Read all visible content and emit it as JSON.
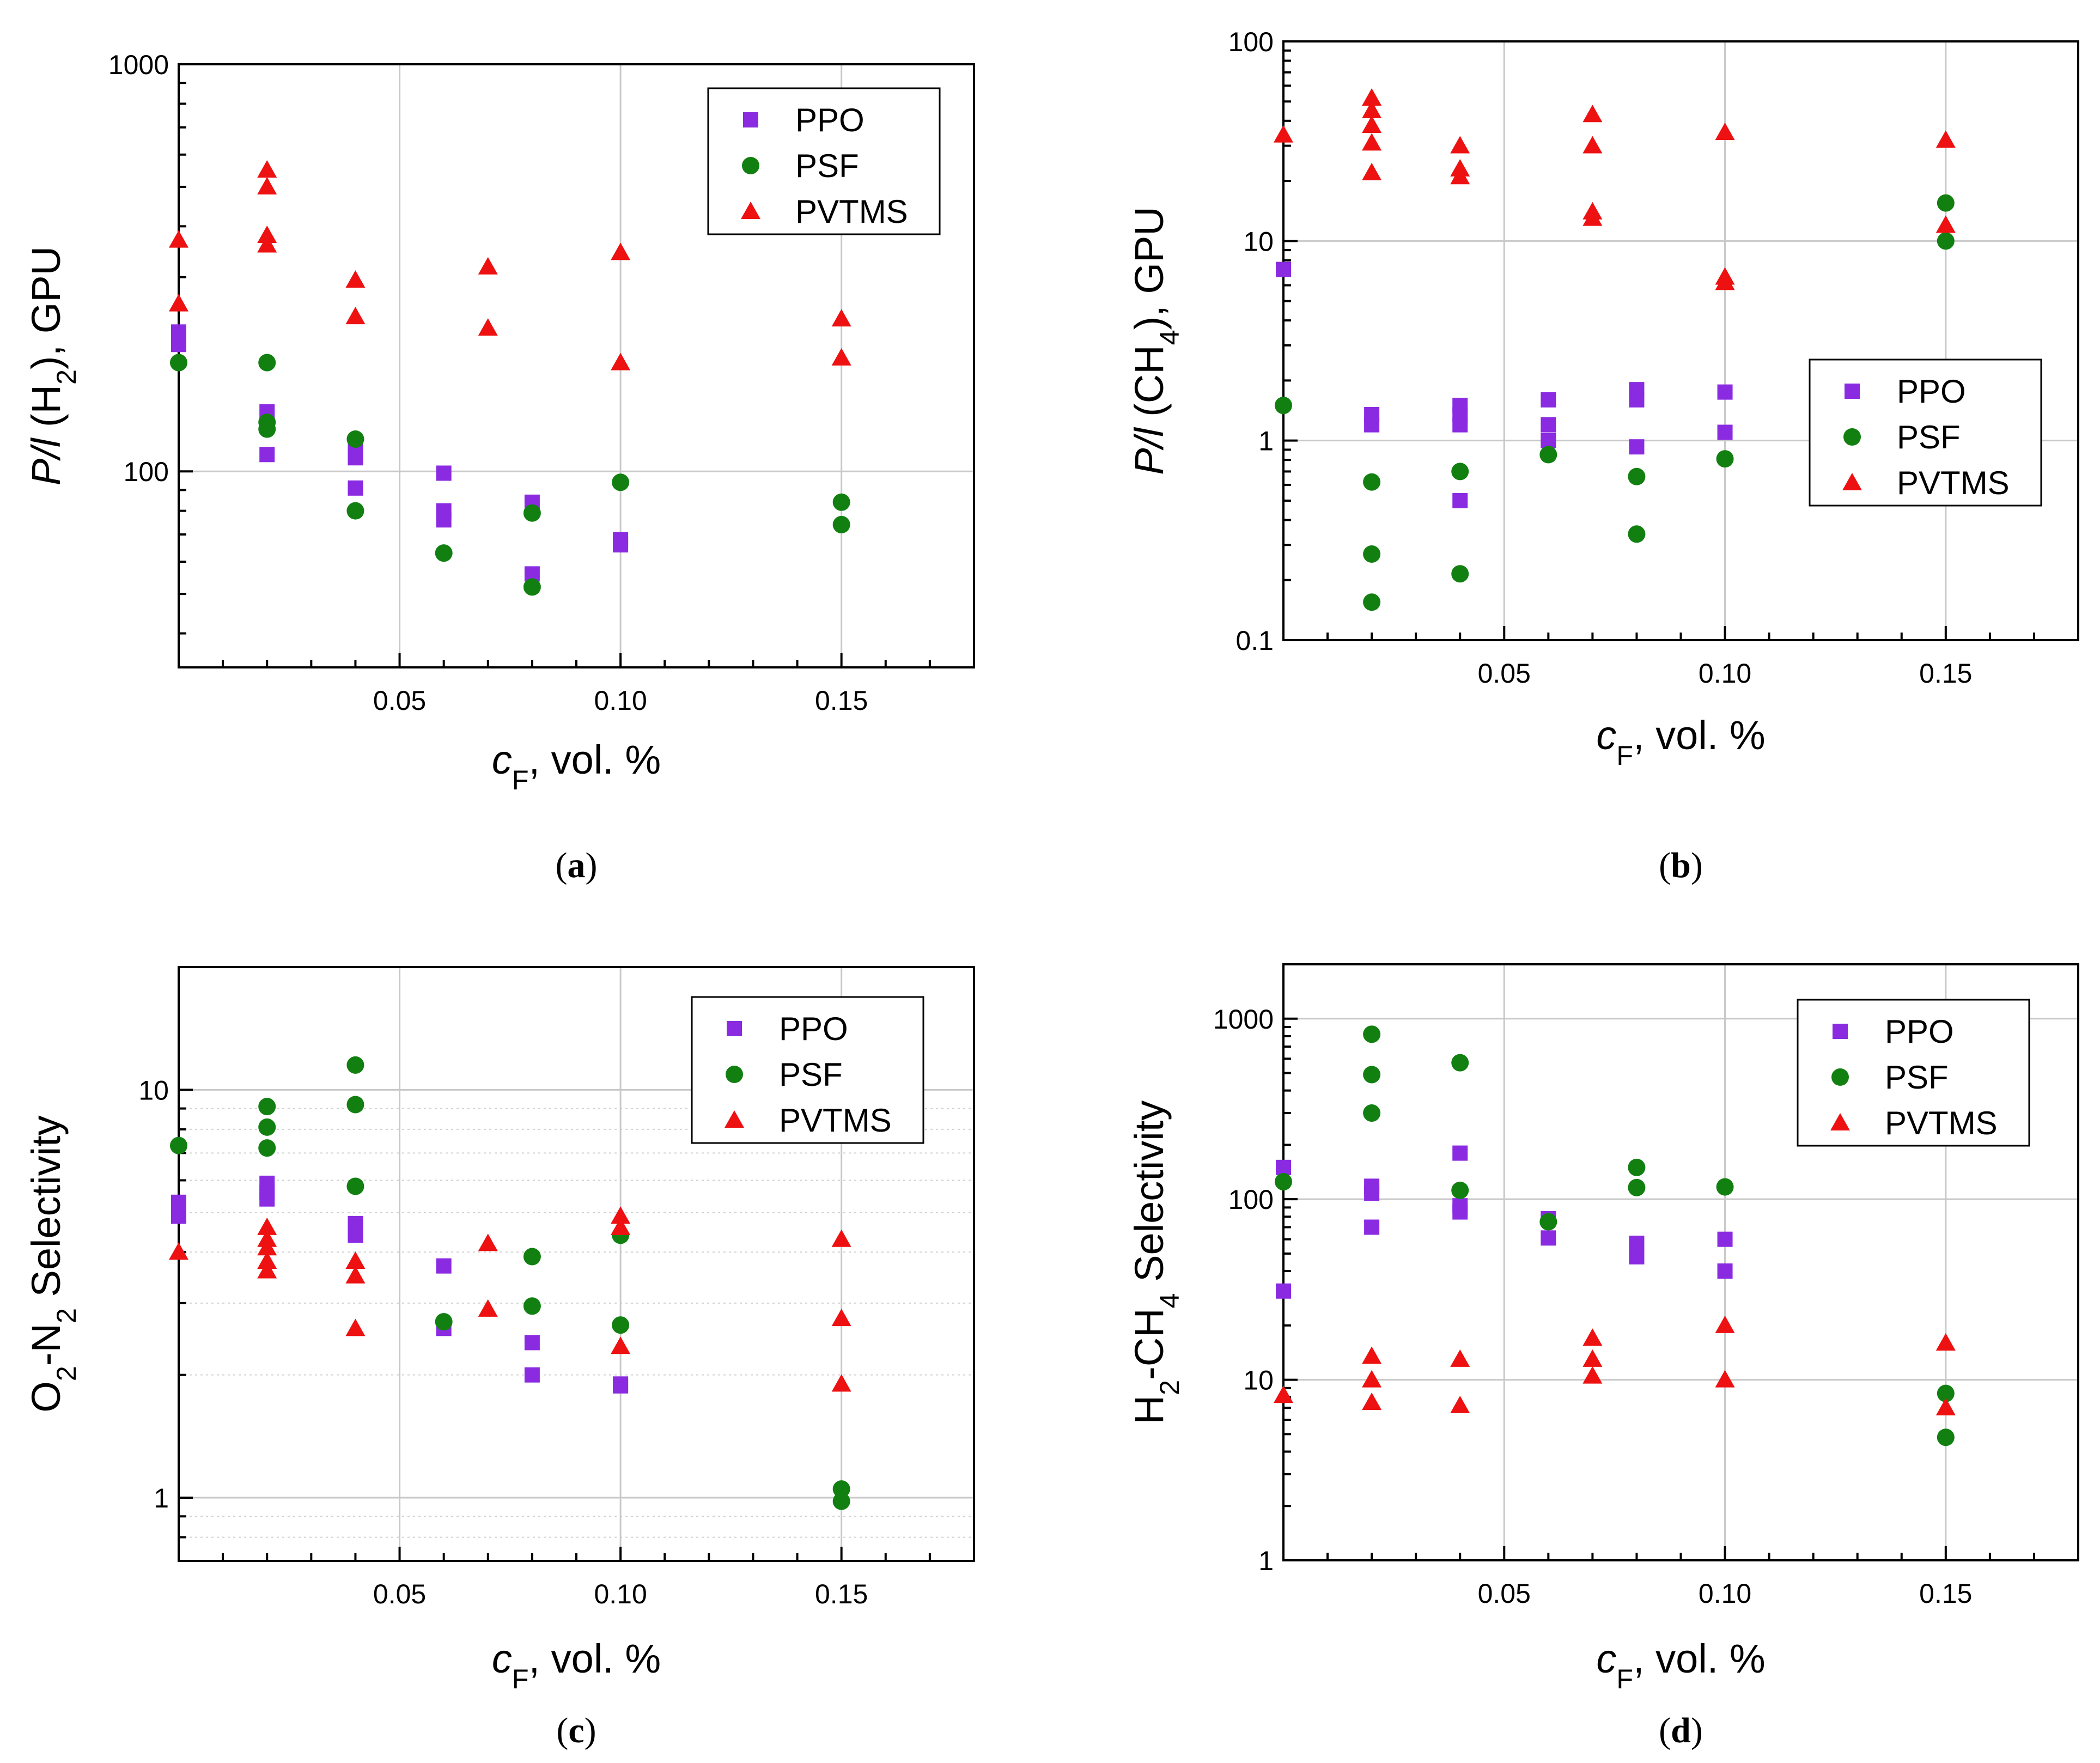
{
  "colors": {
    "PPO": "#8a2be2",
    "PSF": "#118011",
    "PVTMS": "#ee1111"
  },
  "icons": {
    "PPO": "square-marker",
    "PSF": "circle-marker",
    "PVTMS": "triangle-marker"
  },
  "chart_data": [
    {
      "type": "scatter",
      "panel": "a",
      "caption": "a",
      "xlabel": {
        "italic": "c",
        "sub": "F",
        "rest": ", vol. %"
      },
      "ylabel": [
        {
          "t": "P/l",
          "style": "italic"
        },
        {
          "t": " (H"
        },
        {
          "t": "2",
          "style": "sub"
        },
        {
          "t": "), GPU"
        }
      ],
      "xlim": [
        0,
        0.18
      ],
      "xticks": [
        0.05,
        0.1,
        0.15
      ],
      "xticklabels": [
        "0.05",
        "0.10",
        "0.15"
      ],
      "yscale": "log",
      "ylim": [
        33,
        1000
      ],
      "yticks": [
        100,
        1000
      ],
      "yticklabels": [
        "100",
        "1000"
      ],
      "minor_grid": false,
      "legend": "top-right",
      "series": [
        {
          "name": "PPO",
          "marker": "square",
          "x": [
            0,
            0,
            0.02,
            0.02,
            0.04,
            0.04,
            0.04,
            0.06,
            0.06,
            0.06,
            0.08,
            0.08,
            0.1,
            0.1
          ],
          "y": [
            220,
            205,
            140,
            110,
            112,
            108,
            91,
            99,
            80,
            76,
            84,
            56,
            68,
            66
          ]
        },
        {
          "name": "PSF",
          "marker": "circle",
          "x": [
            0,
            0.02,
            0.02,
            0.02,
            0.04,
            0.04,
            0.06,
            0.08,
            0.08,
            0.1,
            0.15,
            0.15
          ],
          "y": [
            185,
            185,
            132,
            127,
            120,
            80,
            63,
            79,
            52,
            94,
            84,
            74
          ]
        },
        {
          "name": "PVTMS",
          "marker": "triangle",
          "x": [
            0,
            0,
            0.02,
            0.02,
            0.02,
            0.02,
            0.04,
            0.04,
            0.07,
            0.07,
            0.1,
            0.1,
            0.15,
            0.15
          ],
          "y": [
            370,
            258,
            550,
            500,
            380,
            360,
            295,
            240,
            318,
            225,
            345,
            185,
            237,
            190
          ]
        }
      ]
    },
    {
      "type": "scatter",
      "panel": "b",
      "caption": "b",
      "xlabel": {
        "italic": "c",
        "sub": "F",
        "rest": ", vol. %"
      },
      "ylabel": [
        {
          "t": "P/l",
          "style": "italic"
        },
        {
          "t": " (CH"
        },
        {
          "t": "4",
          "style": "sub"
        },
        {
          "t": "), GPU"
        }
      ],
      "xlim": [
        0,
        0.18
      ],
      "xticks": [
        0.05,
        0.1,
        0.15
      ],
      "xticklabels": [
        "0.05",
        "0.10",
        "0.15"
      ],
      "yscale": "log",
      "ylim": [
        0.1,
        100
      ],
      "yticks": [
        0.1,
        1,
        10,
        100
      ],
      "yticklabels": [
        "0.1",
        "1",
        "10",
        "100"
      ],
      "minor_grid": false,
      "legend": "center-right",
      "series": [
        {
          "name": "PPO",
          "marker": "square",
          "x": [
            0,
            0.02,
            0.02,
            0.04,
            0.04,
            0.04,
            0.04,
            0.06,
            0.06,
            0.06,
            0.08,
            0.08,
            0.08,
            0.1,
            0.1
          ],
          "y": [
            7.2,
            1.35,
            1.2,
            1.5,
            1.35,
            1.2,
            0.5,
            1.6,
            1.2,
            1.0,
            1.8,
            1.6,
            0.93,
            1.75,
            1.1
          ]
        },
        {
          "name": "PSF",
          "marker": "circle",
          "x": [
            0,
            0.02,
            0.02,
            0.02,
            0.04,
            0.04,
            0.06,
            0.08,
            0.08,
            0.1,
            0.15,
            0.15
          ],
          "y": [
            1.5,
            0.62,
            0.27,
            0.155,
            0.7,
            0.215,
            0.85,
            0.66,
            0.34,
            0.81,
            15.5,
            10
          ]
        },
        {
          "name": "PVTMS",
          "marker": "triangle",
          "x": [
            0,
            0.02,
            0.02,
            0.02,
            0.02,
            0.02,
            0.04,
            0.04,
            0.04,
            0.07,
            0.07,
            0.07,
            0.07,
            0.1,
            0.1,
            0.1,
            0.15,
            0.15
          ],
          "y": [
            34,
            52,
            45,
            38,
            31,
            22,
            30,
            23,
            21,
            43,
            30,
            14,
            13,
            35,
            6.6,
            6.2,
            32,
            12
          ]
        }
      ]
    },
    {
      "type": "scatter",
      "panel": "c",
      "caption": "c",
      "xlabel": {
        "italic": "c",
        "sub": "F",
        "rest": ", vol. %"
      },
      "ylabel": [
        {
          "t": "O"
        },
        {
          "t": "2",
          "style": "sub"
        },
        {
          "t": "-N"
        },
        {
          "t": "2",
          "style": "sub"
        },
        {
          "t": " Selectivity"
        }
      ],
      "xlim": [
        0,
        0.18
      ],
      "xticks": [
        0.05,
        0.1,
        0.15
      ],
      "xticklabels": [
        "0.05",
        "0.10",
        "0.15"
      ],
      "yscale": "log",
      "ylim": [
        0.7,
        20
      ],
      "yticks": [
        1,
        10
      ],
      "yticklabels": [
        "1",
        "10"
      ],
      "minor_grid": true,
      "legend": "top-right",
      "series": [
        {
          "name": "PPO",
          "marker": "square",
          "x": [
            0,
            0,
            0.02,
            0.02,
            0.02,
            0.04,
            0.04,
            0.06,
            0.06,
            0.08,
            0.08,
            0.1,
            0.1
          ],
          "y": [
            5.3,
            4.9,
            5.9,
            5.6,
            5.4,
            4.7,
            4.4,
            3.7,
            2.6,
            2.4,
            2.0,
            1.9,
            1.88
          ]
        },
        {
          "name": "PSF",
          "marker": "circle",
          "x": [
            0,
            0.02,
            0.02,
            0.02,
            0.04,
            0.04,
            0.04,
            0.06,
            0.08,
            0.08,
            0.1,
            0.1,
            0.15,
            0.15
          ],
          "y": [
            7.3,
            9.1,
            8.1,
            7.2,
            11.5,
            9.2,
            5.8,
            2.7,
            3.9,
            2.95,
            4.4,
            2.65,
            1.05,
            0.98
          ]
        },
        {
          "name": "PVTMS",
          "marker": "triangle",
          "x": [
            0,
            0.02,
            0.02,
            0.02,
            0.02,
            0.02,
            0.04,
            0.04,
            0.04,
            0.07,
            0.07,
            0.1,
            0.1,
            0.1,
            0.15,
            0.15,
            0.15
          ],
          "y": [
            4.0,
            4.6,
            4.3,
            4.1,
            3.8,
            3.6,
            3.8,
            3.5,
            2.6,
            4.2,
            2.9,
            4.9,
            4.6,
            2.35,
            4.3,
            2.75,
            1.9
          ]
        }
      ]
    },
    {
      "type": "scatter",
      "panel": "d",
      "caption": "d",
      "xlabel": {
        "italic": "c",
        "sub": "F",
        "rest": ", vol. %"
      },
      "ylabel": [
        {
          "t": "H"
        },
        {
          "t": "2",
          "style": "sub"
        },
        {
          "t": "-CH"
        },
        {
          "t": "4",
          "style": "sub"
        },
        {
          "t": " Selectivity"
        }
      ],
      "xlim": [
        0,
        0.18
      ],
      "xticks": [
        0.05,
        0.1,
        0.15
      ],
      "xticklabels": [
        "0.05",
        "0.10",
        "0.15"
      ],
      "yscale": "log",
      "ylim": [
        1,
        2000
      ],
      "yticks": [
        1,
        10,
        100,
        1000
      ],
      "yticklabels": [
        "1",
        "10",
        "100",
        "1000"
      ],
      "minor_grid": false,
      "legend": "top-right",
      "series": [
        {
          "name": "PPO",
          "marker": "square",
          "x": [
            0,
            0,
            0.02,
            0.02,
            0.02,
            0.04,
            0.04,
            0.04,
            0.06,
            0.06,
            0.08,
            0.08,
            0.1,
            0.1
          ],
          "y": [
            150,
            31,
            118,
            108,
            70,
            180,
            92,
            85,
            78,
            61,
            57,
            48,
            60,
            40
          ]
        },
        {
          "name": "PSF",
          "marker": "circle",
          "x": [
            0,
            0.02,
            0.02,
            0.02,
            0.04,
            0.04,
            0.06,
            0.08,
            0.08,
            0.1,
            0.15,
            0.15
          ],
          "y": [
            125,
            820,
            490,
            300,
            570,
            112,
            75,
            150,
            116,
            117,
            8.4,
            4.8
          ]
        },
        {
          "name": "PVTMS",
          "marker": "triangle",
          "x": [
            0,
            0.02,
            0.02,
            0.02,
            0.04,
            0.04,
            0.07,
            0.07,
            0.07,
            0.1,
            0.1,
            0.15,
            0.15
          ],
          "y": [
            8.2,
            13.5,
            10,
            7.5,
            13,
            7.2,
            17,
            13,
            10.5,
            20,
            10,
            16,
            7
          ]
        }
      ]
    }
  ]
}
